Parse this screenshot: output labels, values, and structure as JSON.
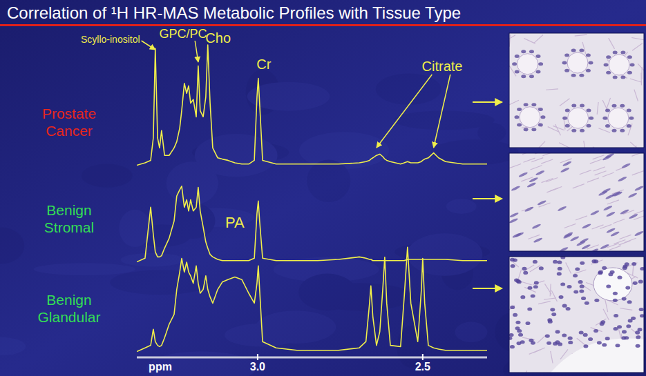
{
  "chart_data": {
    "type": "line",
    "title": "Correlation of ¹H HR-MAS Metabolic Profiles with Tissue Type",
    "x_label": "ppm",
    "x": [
      3.366,
      3.341,
      3.324,
      3.316,
      3.31,
      3.303,
      3.297,
      3.291,
      3.282,
      3.268,
      3.253,
      3.245,
      3.236,
      3.23,
      3.222,
      3.215,
      3.209,
      3.203,
      3.195,
      3.186,
      3.18,
      3.174,
      3.165,
      3.157,
      3.151,
      3.144,
      3.136,
      3.121,
      3.107,
      3.09,
      3.069,
      3.048,
      3.027,
      3.01,
      3.002,
      2.998,
      2.994,
      2.985,
      2.944,
      2.881,
      2.818,
      2.755,
      2.692,
      2.672,
      2.661,
      2.657,
      2.651,
      2.64,
      2.63,
      2.621,
      2.615,
      2.609,
      2.598,
      2.567,
      2.556,
      2.546,
      2.536,
      2.515,
      2.504,
      2.5,
      2.494,
      2.483,
      2.467,
      2.452,
      2.431,
      2.379,
      2.305
    ],
    "xlim": [
      3.366,
      2.305
    ],
    "xticks": [
      {
        "value": 3.0,
        "label": "3.0"
      },
      2.5
    ],
    "ylim": [
      0,
      100
    ],
    "tick_labels": "x",
    "color": "#f0ee4a",
    "series": [
      {
        "name": "Prostate Cancer",
        "color": "#e8261c",
        "values": [
          3,
          5,
          7,
          25,
          97,
          25,
          17,
          31,
          11,
          11,
          17,
          22,
          33,
          47,
          69,
          61,
          67,
          53,
          56,
          42,
          83,
          47,
          42,
          58,
          100,
          53,
          17,
          9,
          8,
          7,
          5,
          4,
          4,
          7,
          58,
          73,
          53,
          7,
          4,
          4,
          4,
          4,
          5,
          6,
          7,
          8,
          9,
          11,
          12,
          10,
          8,
          7,
          6,
          4,
          5,
          6,
          5,
          5,
          6,
          7,
          8,
          9,
          13,
          9,
          6,
          4,
          4
        ]
      },
      {
        "name": "Benign Stromal",
        "color": "#33dd55",
        "values": [
          3,
          6,
          47,
          25,
          11,
          7,
          7,
          8,
          14,
          22,
          36,
          56,
          61,
          64,
          47,
          53,
          44,
          53,
          44,
          47,
          63,
          44,
          31,
          19,
          14,
          9,
          7,
          5,
          4,
          4,
          4,
          4,
          4,
          6,
          42,
          52,
          36,
          6,
          4,
          4,
          4,
          5,
          7,
          6,
          5,
          5,
          4,
          4,
          4,
          4,
          4,
          4,
          4,
          4,
          4,
          5,
          5,
          5,
          5,
          5,
          5,
          5,
          5,
          5,
          5,
          4,
          4
        ]
      },
      {
        "name": "Benign Glandular",
        "color": "#33dd55",
        "values": [
          3,
          6,
          8,
          21,
          11,
          8,
          7,
          8,
          14,
          25,
          33,
          53,
          67,
          78,
          67,
          75,
          67,
          64,
          58,
          72,
          58,
          50,
          53,
          64,
          53,
          47,
          42,
          53,
          59,
          61,
          63,
          61,
          50,
          42,
          58,
          72,
          53,
          11,
          6,
          4,
          4,
          4,
          6,
          11,
          42,
          56,
          31,
          8,
          19,
          53,
          79,
          42,
          8,
          7,
          47,
          87,
          42,
          11,
          53,
          78,
          42,
          8,
          6,
          5,
          4,
          4,
          4
        ]
      }
    ],
    "annotations": [
      {
        "text": "Scyllo-inositol",
        "x": [
          3.31
        ]
      },
      {
        "text": "GPC/PC",
        "x": [
          3.18
        ]
      },
      {
        "text": "Cho",
        "x": [
          3.151
        ]
      },
      {
        "text": "Cr",
        "x": [
          2.998
        ]
      },
      {
        "text": "Citrate",
        "x": [
          2.64,
          2.467
        ]
      },
      {
        "text": "PA",
        "x": [
          3.069
        ]
      }
    ]
  }
}
